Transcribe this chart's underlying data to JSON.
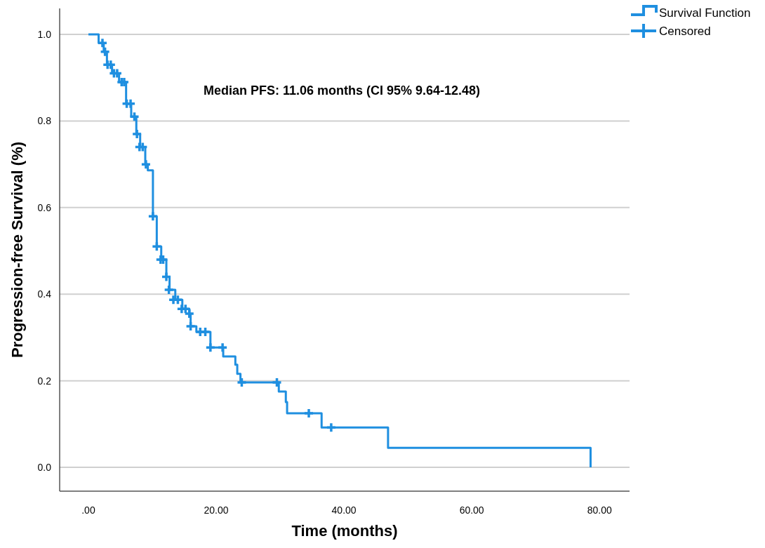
{
  "chart_data": {
    "type": "step",
    "xlabel": "Time (months)",
    "ylabel": "Progression-free Survival (%)",
    "annotations": [
      "Median PFS: 11.06 months (CI 95% 9.64-12.48)"
    ],
    "xlim": [
      -4.5,
      84.7
    ],
    "ylim": [
      -0.055,
      1.06
    ],
    "xticks": [
      {
        "value": 0,
        "label": ".00"
      },
      {
        "value": 20,
        "label": "20.00"
      },
      {
        "value": 40,
        "label": "40.00"
      },
      {
        "value": 60,
        "label": "60.00"
      },
      {
        "value": 80,
        "label": "80.00"
      }
    ],
    "yticks": [
      {
        "value": 0,
        "label": "0.0"
      },
      {
        "value": 0.2,
        "label": "0.2"
      },
      {
        "value": 0.4,
        "label": "0.4"
      },
      {
        "value": 0.6,
        "label": "0.6"
      },
      {
        "value": 0.8,
        "label": "0.8"
      },
      {
        "value": 1,
        "label": "1.0"
      }
    ],
    "grid": "y",
    "legend": "top right",
    "line_style": "solid",
    "series": [
      {
        "name": "Survival Function",
        "color": "#1f8fe0",
        "x": [
          0,
          1.6,
          2.4,
          2.9,
          3.7,
          4.8,
          5.9,
          6.7,
          7.5,
          8.1,
          8.9,
          9.3,
          10.1,
          10.7,
          11.4,
          12.2,
          12.7,
          13.6,
          14.7,
          15.8,
          16.0,
          16.9,
          19.1,
          21.1,
          23.0,
          23.3,
          23.8,
          29.8,
          30.9,
          31.1,
          36.5,
          46.9,
          78.6
        ],
        "values": [
          1.0,
          0.98,
          0.96,
          0.93,
          0.91,
          0.89,
          0.84,
          0.81,
          0.77,
          0.74,
          0.7,
          0.686,
          0.58,
          0.51,
          0.48,
          0.44,
          0.41,
          0.387,
          0.366,
          0.355,
          0.326,
          0.313,
          0.277,
          0.256,
          0.237,
          0.216,
          0.196,
          0.175,
          0.151,
          0.125,
          0.092,
          0.045,
          0
        ]
      },
      {
        "name": "Censored",
        "type": "scatter",
        "marker": "cross",
        "color": "#1f8fe0",
        "x": [
          2.2,
          2.6,
          3.0,
          3.5,
          4.0,
          4.5,
          5.2,
          5.6,
          6.0,
          6.6,
          7.2,
          7.6,
          8.0,
          8.5,
          9.0,
          10.1,
          10.7,
          11.3,
          11.7,
          12.2,
          12.6,
          13.3,
          14.0,
          14.6,
          15.2,
          15.8,
          16.0,
          17.5,
          18.3,
          19.1,
          21.0,
          24.0,
          29.5,
          34.5,
          38.0
        ],
        "values": [
          0.98,
          0.96,
          0.93,
          0.93,
          0.91,
          0.91,
          0.89,
          0.89,
          0.84,
          0.84,
          0.81,
          0.77,
          0.74,
          0.74,
          0.7,
          0.58,
          0.51,
          0.48,
          0.48,
          0.44,
          0.41,
          0.387,
          0.387,
          0.366,
          0.366,
          0.355,
          0.326,
          0.313,
          0.313,
          0.277,
          0.277,
          0.196,
          0.196,
          0.125,
          0.092
        ]
      }
    ]
  }
}
